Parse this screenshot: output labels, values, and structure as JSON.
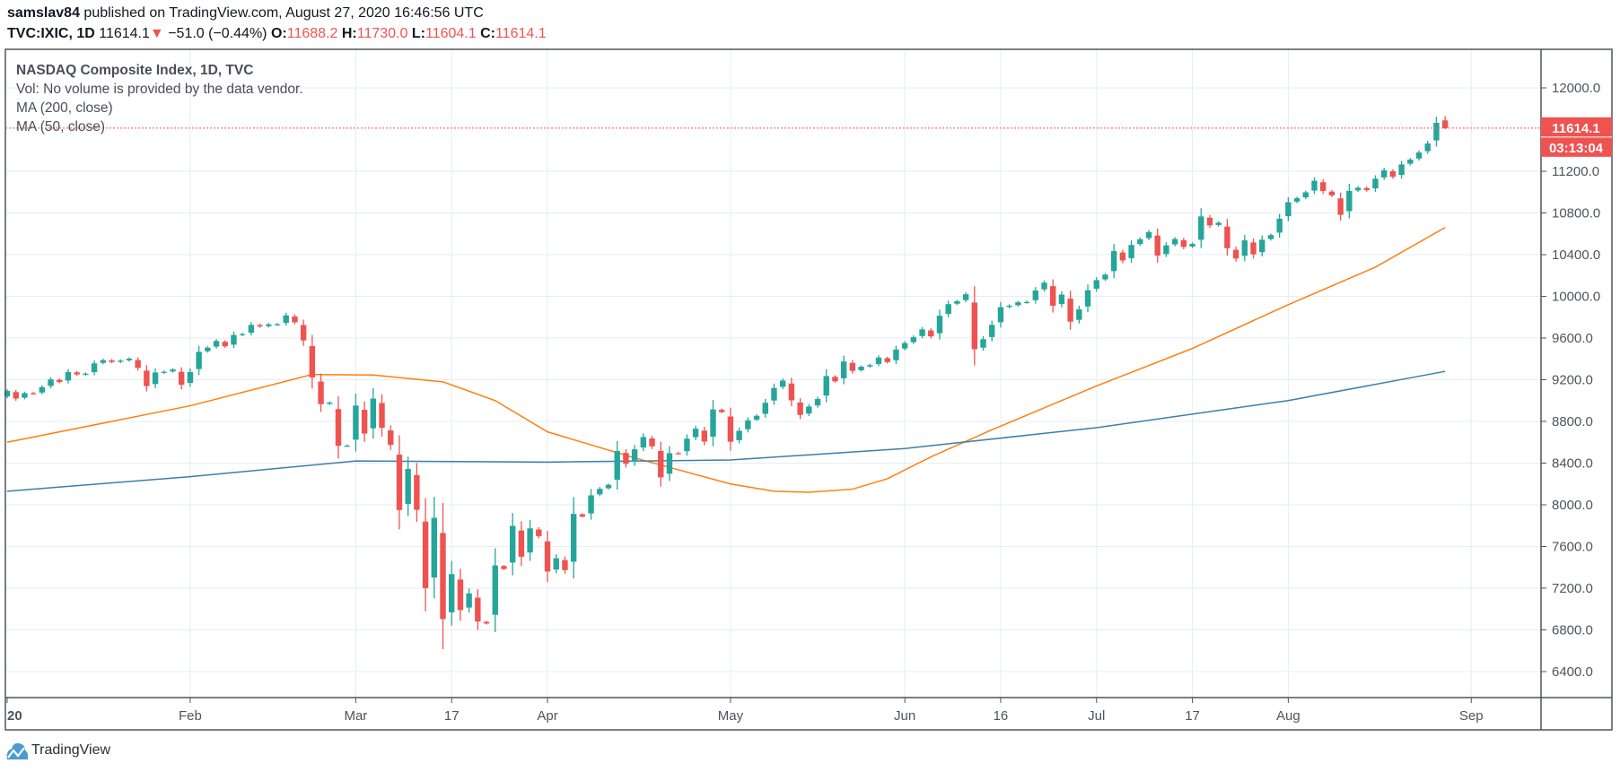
{
  "header": {
    "author": "samslav84",
    "published": "published on TradingView.com, August 27, 2020 16:46:56 UTC",
    "symbol": "TVC:IXIC, 1D",
    "last": "11614.1",
    "change": "−51.0 (−0.44%)",
    "o_label": "O:",
    "o": "11688.2",
    "h_label": "H:",
    "h": "11730.0",
    "l_label": "L:",
    "l": "11604.1",
    "c_label": "C:",
    "c": "11614.1"
  },
  "legend": {
    "title": "NASDAQ Composite Index, 1D, TVC",
    "vol": "Vol: No volume is provided by the data vendor.",
    "ma200": "MA (200, close)",
    "ma50": "MA (50, close)"
  },
  "footer": {
    "brand": "TradingView"
  },
  "colors": {
    "up": "#26a69a",
    "down": "#ef5350",
    "ma50": "#ff7f0e",
    "ma200": "#3c7ea8",
    "grid": "#e6edf3",
    "axis": "#50535e"
  },
  "chart_data": {
    "type": "candlestick",
    "title": "NASDAQ Composite Index, 1D, TVC",
    "first_date": "2020-01-02",
    "last_date": "2020-08-27",
    "ylim": [
      6150,
      12450
    ],
    "y_ticks": [
      "12000.0",
      "11200.0",
      "10800.0",
      "10400.0",
      "10000.0",
      "9600.0",
      "9200.0",
      "8800.0",
      "8400.0",
      "8000.0",
      "7600.0",
      "7200.0",
      "6800.0",
      "6400.0"
    ],
    "y_tick_values": [
      12000,
      11200,
      10800,
      10400,
      10000,
      9600,
      9200,
      8800,
      8400,
      8000,
      7600,
      7200,
      6800,
      6400
    ],
    "x_ticks": [
      {
        "label": "20",
        "bar": 0
      },
      {
        "label": "Feb",
        "bar": 21
      },
      {
        "label": "Mar",
        "bar": 40
      },
      {
        "label": "17",
        "bar": 51
      },
      {
        "label": "Apr",
        "bar": 62
      },
      {
        "label": "May",
        "bar": 83
      },
      {
        "label": "Jun",
        "bar": 103
      },
      {
        "label": "16",
        "bar": 114
      },
      {
        "label": "Jul",
        "bar": 125
      },
      {
        "label": "17",
        "bar": 136
      },
      {
        "label": "Aug",
        "bar": 147
      },
      {
        "label": "Sep",
        "bar": 168
      }
    ],
    "last_price": 11614.1,
    "last_price_label": "11614.1",
    "countdown": "03:13:04",
    "last_bar_ohlc": [
      11688.2,
      11730.0,
      11604.1,
      11614.1
    ],
    "closes": [
      9092,
      9020,
      9071,
      9068,
      9129,
      9203,
      9178,
      9274,
      9251,
      9258,
      9357,
      9388,
      9370,
      9383,
      9402,
      9314,
      9139,
      9269,
      9276,
      9298,
      9151,
      9273,
      9467,
      9508,
      9572,
      9520,
      9629,
      9638,
      9726,
      9711,
      9731,
      9732,
      9817,
      9751,
      9577,
      9221,
      8966,
      8980,
      8566,
      8567,
      8952,
      8684,
      9019,
      8738,
      8575,
      7950,
      8344,
      7952,
      7201,
      7875,
      6904,
      7335,
      6990,
      7150,
      6880,
      6861,
      7418,
      7384,
      7798,
      7502,
      7774,
      7700,
      7360,
      7487,
      7373,
      7913,
      7887,
      8091,
      8153,
      8192,
      8516,
      8394,
      8532,
      8650,
      8561,
      8263,
      8495,
      8494,
      8634,
      8730,
      8607,
      8915,
      8890,
      8605,
      8710,
      8810,
      8854,
      8979,
      9121,
      9192,
      9002,
      8863,
      8943,
      9015,
      9235,
      9185,
      9375,
      9285,
      9325,
      9340,
      9413,
      9369,
      9490,
      9552,
      9608,
      9683,
      9616,
      9814,
      9925,
      9953,
      10020,
      9493,
      9589,
      9726,
      9896,
      9910,
      9943,
      9946,
      10056,
      10131,
      9910,
      10017,
      9757,
      9875,
      10059,
      10155,
      10208,
      10434,
      10344,
      10493,
      10548,
      10617,
      10391,
      10489,
      10550,
      10474,
      10503,
      10767,
      10681,
      10706,
      10462,
      10363,
      10537,
      10403,
      10543,
      10588,
      10745,
      10903,
      10941,
      10998,
      11109,
      11011,
      10968,
      10782,
      11012,
      11042,
      11019,
      11129,
      11210,
      11147,
      11265,
      11312,
      11380,
      11466,
      11665,
      11614.1
    ],
    "series": [
      {
        "name": "MA (50, close)",
        "points": [
          [
            0,
            8600
          ],
          [
            21,
            8950
          ],
          [
            35,
            9250
          ],
          [
            42,
            9245
          ],
          [
            50,
            9180
          ],
          [
            56,
            9000
          ],
          [
            62,
            8700
          ],
          [
            72,
            8450
          ],
          [
            83,
            8200
          ],
          [
            88,
            8130
          ],
          [
            92,
            8120
          ],
          [
            97,
            8150
          ],
          [
            101,
            8250
          ],
          [
            106,
            8460
          ],
          [
            113,
            8720
          ],
          [
            125,
            9140
          ],
          [
            136,
            9500
          ],
          [
            147,
            9920
          ],
          [
            157,
            10280
          ],
          [
            165,
            10660
          ]
        ]
      },
      {
        "name": "MA (200, close)",
        "points": [
          [
            0,
            8130
          ],
          [
            21,
            8270
          ],
          [
            40,
            8420
          ],
          [
            62,
            8410
          ],
          [
            83,
            8430
          ],
          [
            103,
            8540
          ],
          [
            125,
            8740
          ],
          [
            147,
            9000
          ],
          [
            165,
            9280
          ]
        ]
      }
    ]
  }
}
